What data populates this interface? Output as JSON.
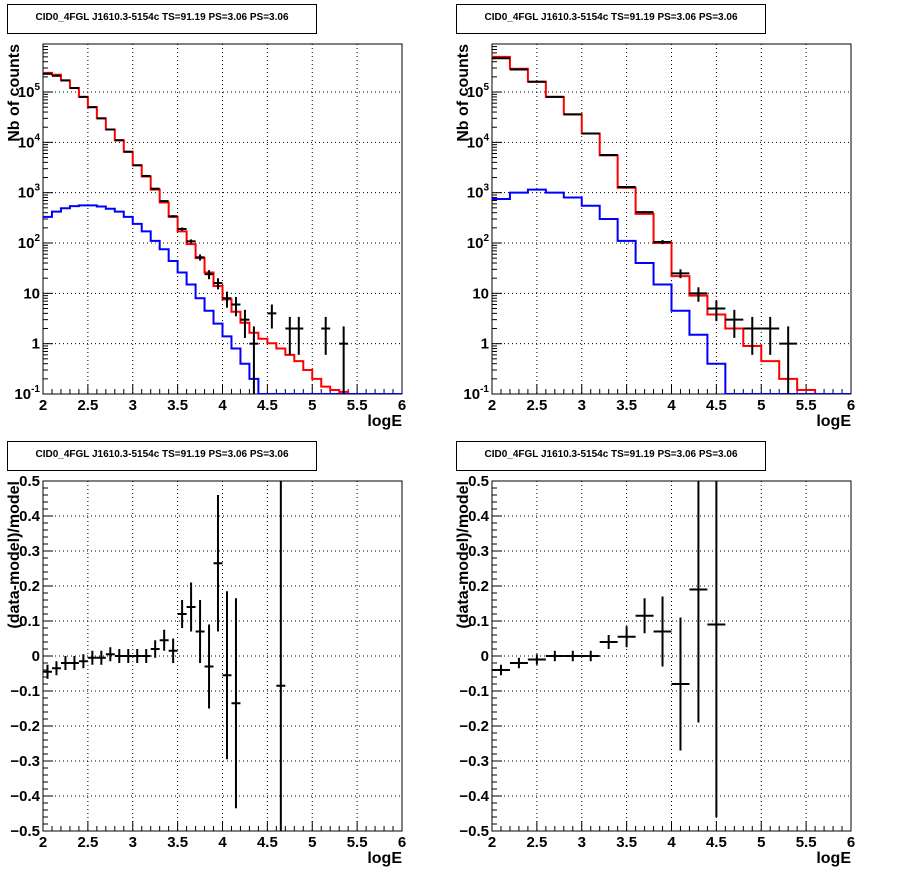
{
  "chart_data": [
    {
      "type": "line",
      "title": "CID0_4FGL J1610.3-5154c TS=91.19 PS=3.06 PS=3.06",
      "xlabel": "logE",
      "ylabel": "Nb of counts",
      "xlim": [
        2,
        6
      ],
      "ylim": [
        0.1,
        900000
      ],
      "yscale": "log",
      "grid": true,
      "x_ticks": [
        "2",
        "2.5",
        "3",
        "3.5",
        "4",
        "4.5",
        "5",
        "5.5",
        "6"
      ],
      "y_ticks": [
        {
          "value": 0.1,
          "main": "10",
          "exp": "-1"
        },
        {
          "value": 1,
          "main": "1",
          "exp": ""
        },
        {
          "value": 10,
          "main": "10",
          "exp": ""
        },
        {
          "value": 100,
          "main": "10",
          "exp": "2"
        },
        {
          "value": 1000,
          "main": "10",
          "exp": "3"
        },
        {
          "value": 10000,
          "main": "10",
          "exp": "4"
        },
        {
          "value": 100000,
          "main": "10",
          "exp": "5"
        }
      ],
      "bin_width": 0.1,
      "series": [
        {
          "color": "#ff0000",
          "style": "step",
          "x": [
            2.0,
            2.1,
            2.2,
            2.3,
            2.4,
            2.5,
            2.6,
            2.7,
            2.8,
            2.9,
            3.0,
            3.1,
            3.2,
            3.3,
            3.4,
            3.5,
            3.6,
            3.7,
            3.8,
            3.9,
            4.0,
            4.1,
            4.2,
            4.3,
            4.4,
            4.5,
            4.6,
            4.7,
            4.8,
            4.9,
            5.0,
            5.1,
            5.2,
            5.3,
            5.4,
            5.5,
            5.6,
            5.7,
            5.8,
            5.9
          ],
          "values": [
            240000,
            220000,
            170000,
            120000,
            80000,
            50000,
            30000,
            18000,
            11000,
            6500,
            3500,
            2100,
            1150,
            640,
            330,
            170,
            95,
            50,
            26,
            14,
            7.6,
            4.3,
            2.6,
            1.65,
            1.25,
            1.02,
            0.8,
            0.6,
            0.45,
            0.3,
            0.2,
            0.14,
            0.12,
            0.11,
            0.1,
            0.1,
            0.1,
            0.1,
            0.1,
            0.1
          ]
        },
        {
          "color": "#0000ff",
          "style": "step",
          "x": [
            2.0,
            2.1,
            2.2,
            2.3,
            2.4,
            2.5,
            2.6,
            2.7,
            2.8,
            2.9,
            3.0,
            3.1,
            3.2,
            3.3,
            3.4,
            3.5,
            3.6,
            3.7,
            3.8,
            3.9,
            4.0,
            4.1,
            4.2,
            4.3,
            4.4,
            4.5,
            4.6,
            4.7,
            4.8,
            4.9,
            5.0,
            5.1,
            5.2,
            5.3,
            5.4,
            5.5,
            5.6,
            5.7,
            5.8,
            5.9
          ],
          "values": [
            330,
            420,
            490,
            540,
            560,
            560,
            530,
            480,
            420,
            330,
            240,
            170,
            110,
            75,
            44,
            26,
            15,
            8,
            4.5,
            2.5,
            1.4,
            0.8,
            0.4,
            0.2,
            0.1,
            0.1,
            0.1,
            0.1,
            0.1,
            0.1,
            0.1,
            0.1,
            0.1,
            0.1,
            0.1,
            0.1,
            0.1,
            0.1,
            0.1,
            0.1
          ]
        },
        {
          "color": "#000000",
          "style": "errorbar",
          "x": [
            2.05,
            2.15,
            2.25,
            2.35,
            2.45,
            2.55,
            2.65,
            2.75,
            2.85,
            2.95,
            3.05,
            3.15,
            3.25,
            3.35,
            3.45,
            3.55,
            3.65,
            3.75,
            3.85,
            3.95,
            4.05,
            4.15,
            4.25,
            4.35,
            4.55,
            4.75,
            4.85,
            5.15,
            5.35
          ],
          "values": [
            230000,
            210000,
            170000,
            120000,
            80000,
            50000,
            30000,
            18000,
            11000,
            6500,
            3500,
            2150,
            1200,
            680,
            340,
            190,
            108,
            52,
            24,
            16,
            8,
            6,
            3,
            1,
            4,
            2,
            2,
            2,
            1
          ],
          "yerr_low": [
            480,
            460,
            410,
            350,
            280,
            220,
            170,
            130,
            105,
            80,
            59,
            46,
            35,
            26,
            18,
            14,
            10,
            7.2,
            4.9,
            4,
            2.8,
            2.5,
            1.7,
            0.9,
            2,
            1.4,
            1.4,
            1.4,
            0.9
          ],
          "yerr_high": [
            480,
            460,
            410,
            350,
            280,
            220,
            170,
            130,
            105,
            80,
            59,
            46,
            35,
            26,
            18,
            14,
            10,
            7.2,
            4.9,
            4,
            2.8,
            2.5,
            1.7,
            1.2,
            2,
            1.4,
            1.4,
            1.4,
            1.2
          ]
        }
      ]
    },
    {
      "type": "line",
      "title": "CID0_4FGL J1610.3-5154c TS=91.19 PS=3.06 PS=3.06",
      "xlabel": "logE",
      "ylabel": "Nb of counts",
      "xlim": [
        2,
        6
      ],
      "ylim": [
        0.1,
        900000
      ],
      "yscale": "log",
      "grid": true,
      "x_ticks": [
        "2",
        "2.5",
        "3",
        "3.5",
        "4",
        "4.5",
        "5",
        "5.5",
        "6"
      ],
      "y_ticks": [
        {
          "value": 0.1,
          "main": "10",
          "exp": "-1"
        },
        {
          "value": 1,
          "main": "1",
          "exp": ""
        },
        {
          "value": 10,
          "main": "10",
          "exp": ""
        },
        {
          "value": 100,
          "main": "10",
          "exp": "2"
        },
        {
          "value": 1000,
          "main": "10",
          "exp": "3"
        },
        {
          "value": 10000,
          "main": "10",
          "exp": "4"
        },
        {
          "value": 100000,
          "main": "10",
          "exp": "5"
        }
      ],
      "bin_width": 0.2,
      "series": [
        {
          "color": "#ff0000",
          "style": "step",
          "x": [
            2.0,
            2.2,
            2.4,
            2.6,
            2.8,
            3.0,
            3.2,
            3.4,
            3.6,
            3.8,
            4.0,
            4.2,
            4.4,
            4.6,
            4.8,
            5.0,
            5.2,
            5.4,
            5.6,
            5.8
          ],
          "values": [
            500000,
            290000,
            160000,
            80000,
            36000,
            15000,
            5500,
            1250,
            380,
            100,
            22,
            9,
            3.8,
            2,
            0.9,
            0.45,
            0.2,
            0.12,
            0.1,
            0.1
          ]
        },
        {
          "color": "#0000ff",
          "style": "step",
          "x": [
            2.0,
            2.2,
            2.4,
            2.6,
            2.8,
            3.0,
            3.2,
            3.4,
            3.6,
            3.8,
            4.0,
            4.2,
            4.4,
            4.6,
            4.8,
            5.0,
            5.2,
            5.4,
            5.6,
            5.8
          ],
          "values": [
            750,
            1000,
            1150,
            1000,
            800,
            550,
            300,
            110,
            40,
            15,
            4.5,
            1.5,
            0.4,
            0.1,
            0.1,
            0.1,
            0.1,
            0.1,
            0.1,
            0.1
          ]
        },
        {
          "color": "#000000",
          "style": "errorbar",
          "x": [
            2.1,
            2.3,
            2.5,
            2.7,
            2.9,
            3.1,
            3.3,
            3.5,
            3.7,
            3.9,
            4.1,
            4.3,
            4.5,
            4.7,
            4.9,
            5.1,
            5.3
          ],
          "values": [
            470000,
            280000,
            160000,
            80000,
            36000,
            15000,
            5600,
            1300,
            410,
            105,
            25,
            10,
            5,
            3,
            2,
            2,
            1
          ],
          "yerr_low": [
            690,
            530,
            400,
            280,
            190,
            120,
            75,
            36,
            20,
            10,
            5,
            3.2,
            2.2,
            1.7,
            1.4,
            1.4,
            0.9
          ],
          "yerr_high": [
            690,
            530,
            400,
            280,
            190,
            120,
            75,
            36,
            20,
            10,
            5,
            3.2,
            2.2,
            1.7,
            1.4,
            1.4,
            1.2
          ]
        }
      ]
    },
    {
      "type": "scatter",
      "title": "CID0_4FGL J1610.3-5154c TS=91.19 PS=3.06 PS=3.06",
      "xlabel": "logE",
      "ylabel": "(data-model)/model",
      "xlim": [
        2,
        6
      ],
      "ylim": [
        -0.5,
        0.5
      ],
      "yscale": "linear",
      "grid": true,
      "x_ticks": [
        "2",
        "2.5",
        "3",
        "3.5",
        "4",
        "4.5",
        "5",
        "5.5",
        "6"
      ],
      "y_ticks": [
        {
          "value": -0.5,
          "main": "−0.5",
          "exp": ""
        },
        {
          "value": -0.4,
          "main": "−0.4",
          "exp": ""
        },
        {
          "value": -0.3,
          "main": "−0.3",
          "exp": ""
        },
        {
          "value": -0.2,
          "main": "−0.2",
          "exp": ""
        },
        {
          "value": -0.1,
          "main": "−0.1",
          "exp": ""
        },
        {
          "value": 0,
          "main": "0",
          "exp": ""
        },
        {
          "value": 0.1,
          "main": "0.1",
          "exp": ""
        },
        {
          "value": 0.2,
          "main": "0.2",
          "exp": ""
        },
        {
          "value": 0.3,
          "main": "0.3",
          "exp": ""
        },
        {
          "value": 0.4,
          "main": "0.4",
          "exp": ""
        },
        {
          "value": 0.5,
          "main": "0.5",
          "exp": ""
        }
      ],
      "bin_width": 0.1,
      "series": [
        {
          "color": "#000000",
          "style": "errorbar",
          "x": [
            2.05,
            2.15,
            2.25,
            2.35,
            2.45,
            2.55,
            2.65,
            2.75,
            2.85,
            2.95,
            3.05,
            3.15,
            3.25,
            3.35,
            3.45,
            3.55,
            3.65,
            3.75,
            3.85,
            3.95,
            4.05,
            4.15,
            4.65
          ],
          "values": [
            -0.045,
            -0.035,
            -0.02,
            -0.02,
            -0.015,
            -0.005,
            -0.005,
            0.005,
            0.0,
            0.0,
            0.0,
            0.0,
            0.02,
            0.045,
            0.015,
            0.12,
            0.14,
            0.07,
            -0.03,
            0.265,
            -0.055,
            -0.135,
            -0.085
          ],
          "yerr": [
            0.02,
            0.02,
            0.02,
            0.02,
            0.02,
            0.02,
            0.02,
            0.02,
            0.02,
            0.02,
            0.02,
            0.02,
            0.025,
            0.03,
            0.035,
            0.04,
            0.07,
            0.09,
            0.12,
            0.195,
            0.24,
            0.3,
            0.6
          ]
        }
      ]
    },
    {
      "type": "scatter",
      "title": "CID0_4FGL J1610.3-5154c TS=91.19 PS=3.06 PS=3.06",
      "xlabel": "logE",
      "ylabel": "(data-model)/model",
      "xlim": [
        2,
        6
      ],
      "ylim": [
        -0.5,
        0.5
      ],
      "yscale": "linear",
      "grid": true,
      "x_ticks": [
        "2",
        "2.5",
        "3",
        "3.5",
        "4",
        "4.5",
        "5",
        "5.5",
        "6"
      ],
      "y_ticks": [
        {
          "value": -0.5,
          "main": "−0.5",
          "exp": ""
        },
        {
          "value": -0.4,
          "main": "−0.4",
          "exp": ""
        },
        {
          "value": -0.3,
          "main": "−0.3",
          "exp": ""
        },
        {
          "value": -0.2,
          "main": "−0.2",
          "exp": ""
        },
        {
          "value": -0.1,
          "main": "−0.1",
          "exp": ""
        },
        {
          "value": 0,
          "main": "0",
          "exp": ""
        },
        {
          "value": 0.1,
          "main": "0.1",
          "exp": ""
        },
        {
          "value": 0.2,
          "main": "0.2",
          "exp": ""
        },
        {
          "value": 0.3,
          "main": "0.3",
          "exp": ""
        },
        {
          "value": 0.4,
          "main": "0.4",
          "exp": ""
        },
        {
          "value": 0.5,
          "main": "0.5",
          "exp": ""
        }
      ],
      "bin_width": 0.2,
      "series": [
        {
          "color": "#000000",
          "style": "errorbar",
          "x": [
            2.1,
            2.3,
            2.5,
            2.7,
            2.9,
            3.1,
            3.3,
            3.5,
            3.7,
            3.9,
            4.1,
            4.3,
            4.5
          ],
          "values": [
            -0.04,
            -0.02,
            -0.01,
            0.0,
            0.0,
            0.0,
            0.04,
            0.055,
            0.115,
            0.07,
            -0.08,
            0.19,
            0.09
          ],
          "yerr": [
            0.015,
            0.015,
            0.015,
            0.015,
            0.015,
            0.015,
            0.02,
            0.03,
            0.05,
            0.1,
            0.19,
            0.38,
            0.55
          ]
        }
      ]
    }
  ]
}
